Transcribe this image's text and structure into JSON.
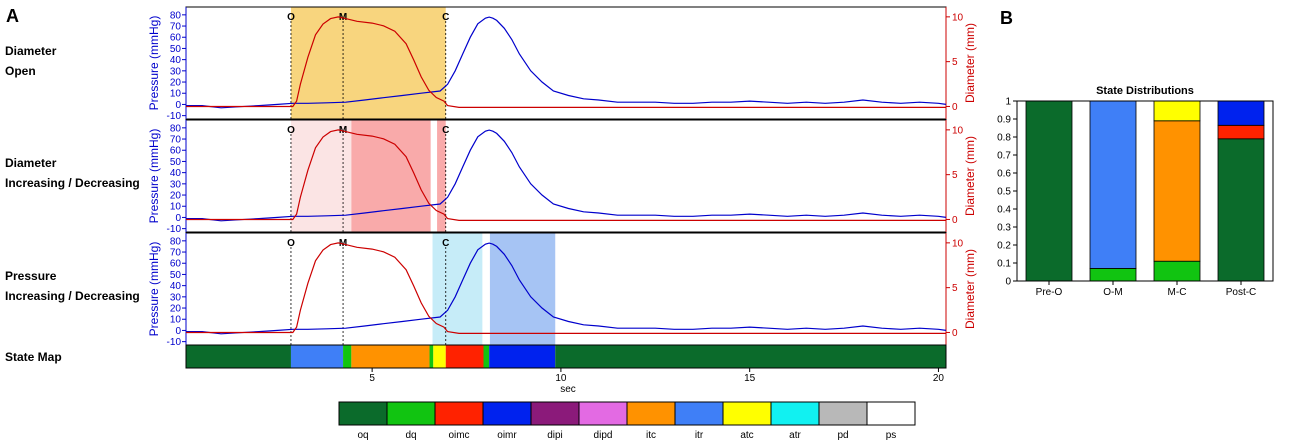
{
  "panel_labels": [
    "A",
    "B"
  ],
  "row_labels": [
    [
      "Diameter",
      "Open"
    ],
    [
      "Diameter",
      "Increasing / Decreasing"
    ],
    [
      "Pressure",
      "Increasing / Decreasing"
    ]
  ],
  "state_map_label": "State Map",
  "chart_data": [
    {
      "type": "line",
      "panels": 3,
      "xlabel": "sec",
      "x_ticks": [
        5,
        10,
        15,
        20
      ],
      "xlim": [
        0.07,
        20.2
      ],
      "ylabel_left": "Pressure (mmHg)",
      "ylim_left": [
        -13,
        87
      ],
      "y_ticks_left": [
        -10,
        0,
        10,
        20,
        30,
        40,
        50,
        60,
        70,
        80
      ],
      "ylabel_right": "Diameter (mm)",
      "ylim_right": [
        -1.4,
        11.1
      ],
      "y_ticks_right": [
        0,
        5,
        10
      ],
      "series": [
        {
          "name": "",
          "color": "#0000cc",
          "x": [
            0.07,
            0.5,
            1,
            1.5,
            2,
            2.5,
            2.9,
            3.3,
            3.8,
            4.3,
            4.8,
            5.3,
            5.8,
            6.3,
            6.8,
            7,
            7.2,
            7.4,
            7.6,
            7.8,
            8,
            8.1,
            8.2,
            8.3,
            8.5,
            8.7,
            8.9,
            9.2,
            9.5,
            9.8,
            10.2,
            10.6,
            11,
            11.5,
            12,
            12.5,
            13,
            13.5,
            14,
            14.5,
            15,
            15.5,
            16,
            16.5,
            17,
            17.5,
            18,
            18.5,
            19,
            19.5,
            20,
            20.2
          ],
          "y": [
            -1,
            -1,
            -3,
            -2,
            -1,
            0,
            1,
            1,
            1.5,
            2,
            4,
            6,
            8,
            10,
            12,
            18,
            30,
            45,
            60,
            72,
            77,
            78,
            77,
            75,
            68,
            58,
            45,
            30,
            20,
            12,
            8,
            5,
            4,
            2,
            2,
            2,
            1,
            1,
            2,
            2,
            3,
            2,
            1,
            2,
            1,
            2,
            4,
            2,
            1,
            2,
            1,
            0
          ]
        },
        {
          "name": "",
          "color": "#cc0000",
          "axis": "right",
          "x": [
            0.07,
            2,
            2.9,
            3,
            3.1,
            3.3,
            3.5,
            3.7,
            3.9,
            4.1,
            4.3,
            4.6,
            5,
            5.3,
            5.6,
            5.9,
            6.1,
            6.3,
            6.5,
            6.7,
            6.9,
            7,
            7.3,
            8,
            20.2
          ],
          "y": [
            0,
            0,
            0,
            0.6,
            2.5,
            5.5,
            8,
            9.2,
            9.8,
            10,
            9.8,
            9.5,
            9.3,
            9,
            8.4,
            7,
            5.2,
            3.3,
            1.8,
            1,
            0.6,
            0.1,
            -0.1,
            -0.1,
            -0.1
          ]
        }
      ],
      "event_markers": [
        {
          "label": "O",
          "x": 2.85
        },
        {
          "label": "M",
          "x": 4.23
        },
        {
          "label": "C",
          "x": 6.95
        }
      ],
      "shaded_regions": [
        [
          {
            "x0": 2.85,
            "x1": 6.95,
            "color": "#f8d57e"
          }
        ],
        [
          {
            "x0": 2.85,
            "x1": 4.45,
            "color": "#fbe4e4"
          },
          {
            "x0": 4.45,
            "x1": 6.55,
            "color": "#f9aaaa"
          },
          {
            "x0": 6.72,
            "x1": 6.95,
            "color": "#f9aaaa"
          }
        ],
        [
          {
            "x0": 6.6,
            "x1": 7.92,
            "color": "#c6ecf8"
          },
          {
            "x0": 8.12,
            "x1": 9.85,
            "color": "#a6c4f4"
          }
        ]
      ],
      "state_map": [
        {
          "x0": 0.07,
          "x1": 2.85,
          "state": "oq"
        },
        {
          "x0": 2.85,
          "x1": 4.23,
          "state": "itr"
        },
        {
          "x0": 4.23,
          "x1": 4.45,
          "state": "dq"
        },
        {
          "x0": 4.45,
          "x1": 6.52,
          "state": "itc"
        },
        {
          "x0": 6.52,
          "x1": 6.62,
          "state": "dq"
        },
        {
          "x0": 6.62,
          "x1": 6.95,
          "state": "atc"
        },
        {
          "x0": 6.95,
          "x1": 7.95,
          "state": "oimc"
        },
        {
          "x0": 7.95,
          "x1": 8.1,
          "state": "dq"
        },
        {
          "x0": 8.1,
          "x1": 9.85,
          "state": "oimr"
        },
        {
          "x0": 9.85,
          "x1": 20.2,
          "state": "oq"
        }
      ]
    },
    {
      "type": "bar",
      "stacked": true,
      "title": "State Distributions",
      "categories": [
        "Pre-O",
        "O-M",
        "M-C",
        "Post-C"
      ],
      "ylim": [
        0,
        1
      ],
      "y_ticks": [
        0,
        0.1,
        0.2,
        0.3,
        0.4,
        0.5,
        0.6,
        0.7,
        0.8,
        0.9,
        1
      ],
      "series": [
        {
          "name": "oq",
          "values": [
            1,
            0,
            0,
            0.79
          ]
        },
        {
          "name": "dq",
          "values": [
            0,
            0.07,
            0.11,
            0
          ]
        },
        {
          "name": "itr",
          "values": [
            0,
            0.93,
            0,
            0
          ]
        },
        {
          "name": "itc",
          "values": [
            0,
            0,
            0.78,
            0
          ]
        },
        {
          "name": "atc",
          "values": [
            0,
            0,
            0.11,
            0
          ]
        },
        {
          "name": "oimc",
          "values": [
            0,
            0,
            0,
            0.075
          ]
        },
        {
          "name": "oimr",
          "values": [
            0,
            0,
            0,
            0.135
          ]
        }
      ]
    }
  ],
  "legend": [
    {
      "name": "oq",
      "color": "#0b6b2b"
    },
    {
      "name": "dq",
      "color": "#11c411"
    },
    {
      "name": "oimc",
      "color": "#ff2200"
    },
    {
      "name": "oimr",
      "color": "#0022ee"
    },
    {
      "name": "dipi",
      "color": "#8b1a7a"
    },
    {
      "name": "dipd",
      "color": "#e36ae3"
    },
    {
      "name": "itc",
      "color": "#ff9200"
    },
    {
      "name": "itr",
      "color": "#3f7ff7"
    },
    {
      "name": "atc",
      "color": "#ffff00"
    },
    {
      "name": "atr",
      "color": "#11f1f1"
    },
    {
      "name": "pd",
      "color": "#b8b8b8"
    },
    {
      "name": "ps",
      "color": "#ffffff"
    }
  ]
}
